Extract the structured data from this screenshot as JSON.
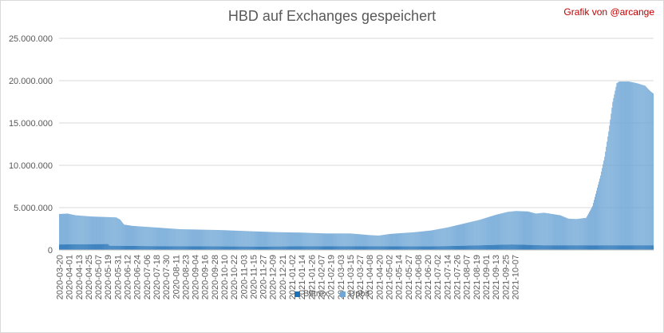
{
  "chart_data": {
    "type": "bar",
    "stacked": true,
    "title": "HBD auf Exchanges gespeichert",
    "credit": "Grafik von @arcange",
    "ylim": [
      0,
      25000000
    ],
    "yticks": [
      "0",
      "5.000.000",
      "10.000.000",
      "15.000.000",
      "20.000.000",
      "25.000.000"
    ],
    "grid": true,
    "legend_position": "bottom",
    "x_tick_labels": [
      "2020-03-20",
      "2020-04-01",
      "2020-04-13",
      "2020-04-25",
      "2020-05-07",
      "2020-05-19",
      "2020-05-31",
      "2020-06-12",
      "2020-06-24",
      "2020-07-06",
      "2020-07-18",
      "2020-07-30",
      "2020-08-11",
      "2020-08-23",
      "2020-09-04",
      "2020-09-16",
      "2020-09-28",
      "2020-10-10",
      "2020-10-22",
      "2020-11-03",
      "2020-11-15",
      "2020-11-27",
      "2020-12-09",
      "2020-12-21",
      "2021-01-02",
      "2021-01-14",
      "2021-01-26",
      "2021-02-07",
      "2021-02-19",
      "2021-03-03",
      "2021-03-15",
      "2021-03-27",
      "2021-04-08",
      "2021-04-20",
      "2021-05-02",
      "2021-05-14",
      "2021-05-27",
      "2021-06-08",
      "2021-06-20",
      "2021-07-02",
      "2021-07-14",
      "2021-07-26",
      "2021-08-07",
      "2021-08-19",
      "2021-09-01",
      "2021-09-13",
      "2021-09-25",
      "2021-10-07"
    ],
    "x_tick_label_step_days": 12,
    "series": [
      {
        "name": "Bittrex",
        "color": "#1f6fb5"
      },
      {
        "name": "Upbit",
        "color": "#70a7d6"
      }
    ],
    "knots_bittrex": [
      [
        0,
        650000
      ],
      [
        60,
        700000
      ],
      [
        62,
        500000
      ],
      [
        120,
        450000
      ],
      [
        250,
        400000
      ],
      [
        300,
        430000
      ],
      [
        460,
        420000
      ],
      [
        500,
        500000
      ],
      [
        560,
        650000
      ],
      [
        600,
        550000
      ]
    ],
    "knots_total": [
      [
        0,
        4250000
      ],
      [
        10,
        4300000
      ],
      [
        20,
        4100000
      ],
      [
        40,
        3950000
      ],
      [
        70,
        3850000
      ],
      [
        75,
        3600000
      ],
      [
        80,
        3000000
      ],
      [
        90,
        2850000
      ],
      [
        120,
        2650000
      ],
      [
        150,
        2450000
      ],
      [
        200,
        2350000
      ],
      [
        240,
        2200000
      ],
      [
        270,
        2100000
      ],
      [
        300,
        2050000
      ],
      [
        330,
        1950000
      ],
      [
        360,
        1950000
      ],
      [
        385,
        1750000
      ],
      [
        395,
        1700000
      ],
      [
        410,
        1900000
      ],
      [
        440,
        2100000
      ],
      [
        460,
        2300000
      ],
      [
        480,
        2650000
      ],
      [
        500,
        3100000
      ],
      [
        520,
        3550000
      ],
      [
        540,
        4150000
      ],
      [
        555,
        4500000
      ],
      [
        565,
        4600000
      ],
      [
        580,
        4550000
      ],
      [
        590,
        4300000
      ],
      [
        600,
        4400000
      ],
      [
        610,
        4250000
      ],
      [
        620,
        4100000
      ],
      [
        630,
        3700000
      ],
      [
        640,
        3650000
      ],
      [
        652,
        3800000
      ],
      [
        655,
        4300000
      ],
      [
        660,
        5200000
      ],
      [
        665,
        7000000
      ],
      [
        670,
        8800000
      ],
      [
        675,
        11000000
      ],
      [
        680,
        14000000
      ],
      [
        685,
        17500000
      ],
      [
        690,
        19700000
      ],
      [
        693,
        19900000
      ],
      [
        705,
        19900000
      ],
      [
        715,
        19700000
      ],
      [
        725,
        19400000
      ],
      [
        731,
        18800000
      ],
      [
        735,
        18500000
      ]
    ],
    "total_days": 736
  }
}
